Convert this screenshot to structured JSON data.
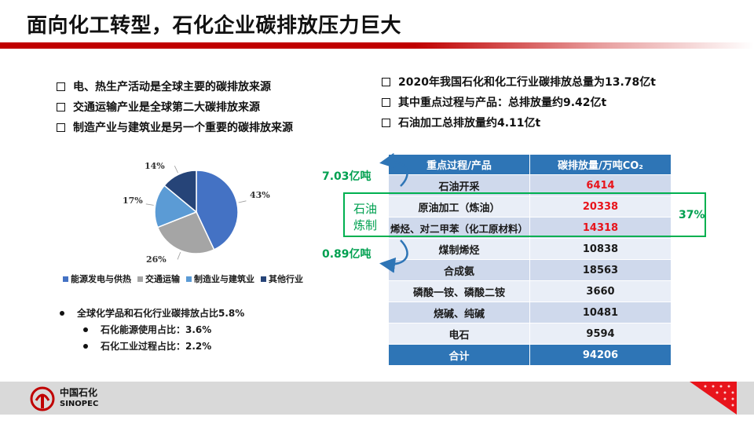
{
  "slide": {
    "title": "面向化工转型，石化企业碳排放压力巨大"
  },
  "left_bullets": [
    "电、热生产活动是全球主要的碳排放来源",
    "交通运输产业是全球第二大碳排放来源",
    "制造产业与建筑业是另一个重要的碳排放来源"
  ],
  "right_bullets": [
    "2020年我国石化和化工行业碳排放总量为13.78亿t",
    "其中重点过程与产品：总排放量约9.42亿t",
    "石油加工总排放量约4.11亿t"
  ],
  "chart_data": {
    "type": "pie",
    "slices": [
      {
        "name": "能源发电与供热",
        "value": 43,
        "label": "43%",
        "color": "#4472c4"
      },
      {
        "name": "交通运输",
        "value": 26,
        "label": "26%",
        "color": "#a5a5a5"
      },
      {
        "name": "制造业与建筑业",
        "value": 17,
        "label": "17%",
        "color": "#5b9bd5"
      },
      {
        "name": "其他行业",
        "value": 14,
        "label": "14%",
        "color": "#264478"
      }
    ]
  },
  "bottom_notes": {
    "main": "全球化学品和石化行业碳排放占比5.8%",
    "sub1": "石化能源使用占比：3.6%",
    "sub2": "石化工业过程占比：2.2%"
  },
  "table": {
    "header": [
      "重点过程/产品",
      "碳排放量/万吨CO₂"
    ],
    "rows": [
      {
        "name": "石油开采",
        "value": "6414",
        "highlight": true
      },
      {
        "name": "原油加工（炼油）",
        "value": "20338",
        "highlight": true
      },
      {
        "name": "烯烃、对二甲苯（化工原材料）",
        "value": "14318",
        "highlight": true
      },
      {
        "name": "煤制烯烃",
        "value": "10838",
        "highlight": false
      },
      {
        "name": "合成氨",
        "value": "18563",
        "highlight": false
      },
      {
        "name": "磷酸一铵、磷酸二铵",
        "value": "3660",
        "highlight": false
      },
      {
        "name": "烧碱、纯碱",
        "value": "10481",
        "highlight": false
      },
      {
        "name": "电石",
        "value": "9594",
        "highlight": false
      }
    ],
    "total": {
      "name": "合计",
      "value": "94206"
    }
  },
  "annotations": {
    "group_label_line1": "石油",
    "group_label_line2": "炼制",
    "share": "37%",
    "top_arrow": "7.03亿吨",
    "bottom_arrow": "0.89亿吨"
  },
  "footer": {
    "brand_cn": "中国石化",
    "brand_en": "SINOPEC"
  },
  "colors": {
    "accent_red": "#c00000",
    "table_blue": "#2e75b6",
    "green": "#00b050"
  }
}
